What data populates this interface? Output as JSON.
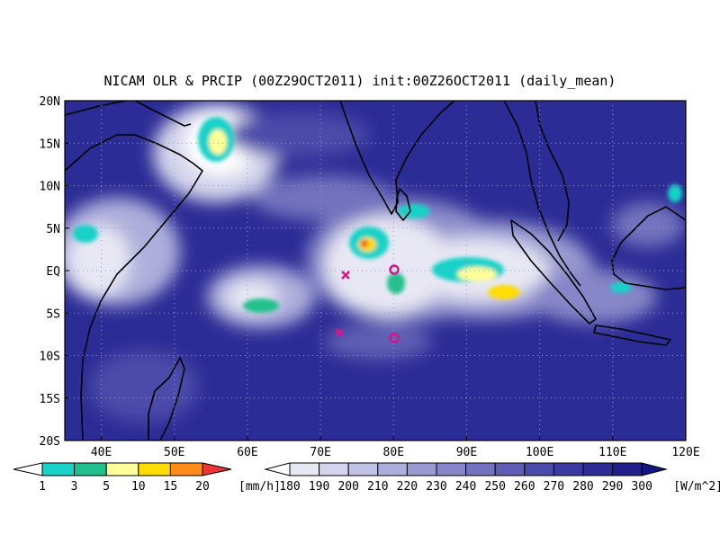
{
  "map": {
    "title": "NICAM OLR & PRCIP (00Z29OCT2011) init:00Z26OCT2011 (daily_mean)",
    "lon_range": [
      35,
      120
    ],
    "lat_range": [
      -20,
      20
    ],
    "lon_ticks": [
      {
        "value": 40,
        "label": "40E"
      },
      {
        "value": 50,
        "label": "50E"
      },
      {
        "value": 60,
        "label": "60E"
      },
      {
        "value": 70,
        "label": "70E"
      },
      {
        "value": 80,
        "label": "80E"
      },
      {
        "value": 90,
        "label": "90E"
      },
      {
        "value": 100,
        "label": "100E"
      },
      {
        "value": 110,
        "label": "110E"
      },
      {
        "value": 120,
        "label": "120E"
      }
    ],
    "lat_ticks": [
      {
        "value": 20,
        "label": "20N"
      },
      {
        "value": 15,
        "label": "15N"
      },
      {
        "value": 10,
        "label": "10N"
      },
      {
        "value": 5,
        "label": "5N"
      },
      {
        "value": 0,
        "label": "EQ"
      },
      {
        "value": -5,
        "label": "5S"
      },
      {
        "value": -10,
        "label": "10S"
      },
      {
        "value": -15,
        "label": "15S"
      },
      {
        "value": -20,
        "label": "20S"
      }
    ],
    "grid": true,
    "precip_colorbar": {
      "labels": [
        1,
        3,
        5,
        10,
        15,
        20
      ],
      "unit": "[mm/h]",
      "colors": [
        "#ffffff",
        "#19d2c8",
        "#20c08c",
        "#ffff99",
        "#ffdd00",
        "#ff8c1a",
        "#ee3333"
      ]
    },
    "olr_colorbar": {
      "labels": [
        180,
        190,
        200,
        210,
        220,
        230,
        240,
        250,
        260,
        270,
        280,
        290,
        300
      ],
      "unit": "[W/m^2]",
      "colors": [
        "#ffffff",
        "#e8e8f4",
        "#d4d4ec",
        "#c2c2e4",
        "#aeaedc",
        "#9a9ad2",
        "#8686c8",
        "#7272be",
        "#5e5eb4",
        "#4b4baa",
        "#3a3aa0",
        "#2c2c96",
        "#20208c",
        "#141482"
      ]
    }
  }
}
